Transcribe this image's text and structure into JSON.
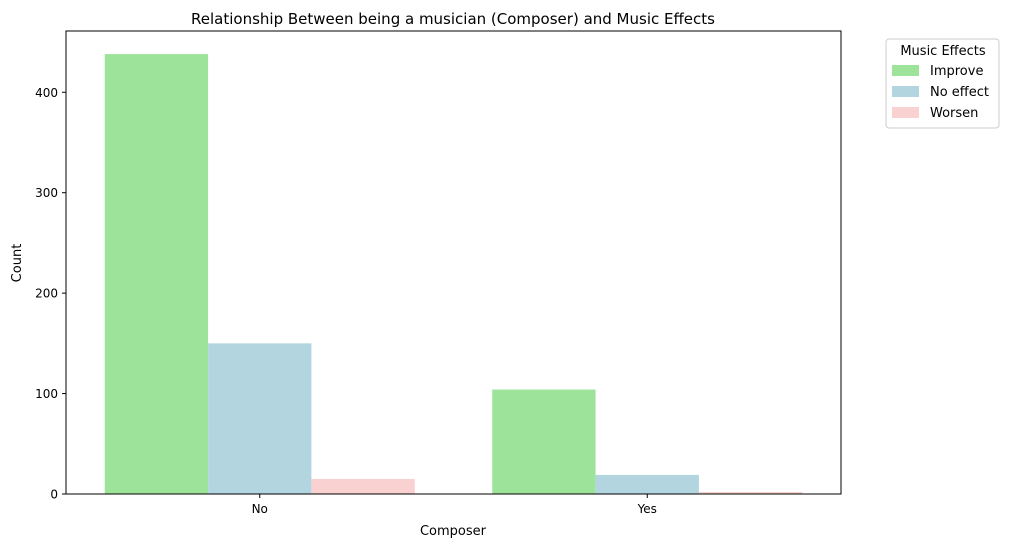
{
  "chart_data": {
    "type": "bar",
    "title": "Relationship Between being a musician (Composer) and Music Effects",
    "xlabel": "Composer",
    "ylabel": "Count",
    "categories": [
      "No",
      "Yes"
    ],
    "ylim": [
      0,
      461
    ],
    "yticks": [
      0,
      100,
      200,
      300,
      400
    ],
    "grid": false,
    "legend": {
      "title": "Music Effects",
      "placement": "outside-top-right"
    },
    "series": [
      {
        "name": "Improve",
        "color": "#9de39a",
        "values": [
          438,
          104
        ]
      },
      {
        "name": "No effect",
        "color": "#b3d5e0",
        "values": [
          150,
          19
        ]
      },
      {
        "name": "Worsen",
        "color": "#fad1d1",
        "values": [
          15,
          2
        ]
      }
    ]
  }
}
